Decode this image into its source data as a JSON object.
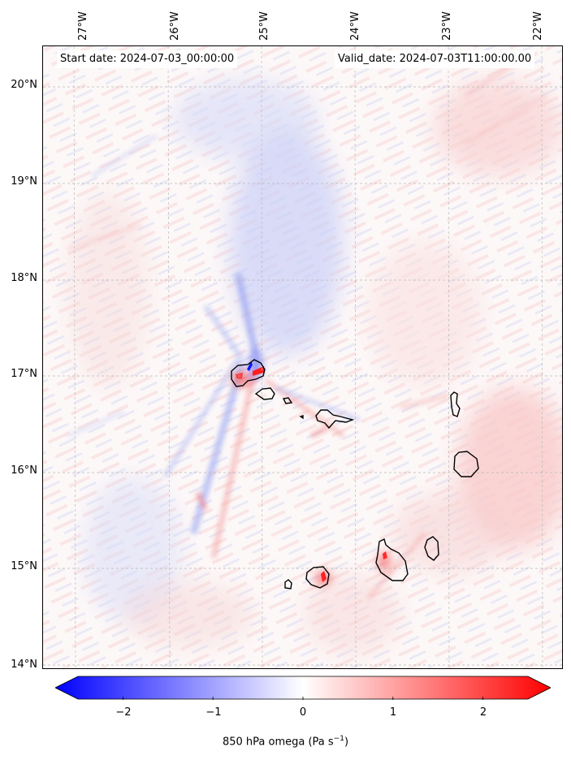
{
  "map": {
    "start_date": "Start date: 2024-07-03_00:00:00",
    "valid_date": "Valid_date: 2024-07-03T11:00:00.00",
    "longitude_labels": [
      "27°W",
      "26°W",
      "25°W",
      "24°W",
      "23°W",
      "22°W"
    ],
    "latitude_labels": [
      "20°N",
      "19°N",
      "18°N",
      "17°N",
      "16°N",
      "15°N",
      "14°N"
    ],
    "colormap": "bwr",
    "colors": {
      "negative": "#0000ff",
      "zero": "#ffffff",
      "positive": "#ff0000",
      "coastline": "#000000"
    },
    "islands": [
      "Santo Antão",
      "São Vicente",
      "Santa Luzia",
      "São Nicolau",
      "Sal",
      "Boa Vista",
      "Maio",
      "Santiago",
      "Fogo",
      "Brava"
    ]
  },
  "colorbar": {
    "ticks": [
      "−2",
      "−1",
      "0",
      "1",
      "2"
    ],
    "tick_values": [
      -2,
      -1,
      0,
      1,
      2
    ],
    "range": [
      -2.5,
      2.5
    ],
    "label_main": "850 hPa omega (Pa s",
    "label_exp": "−1",
    "label_end": ")"
  }
}
